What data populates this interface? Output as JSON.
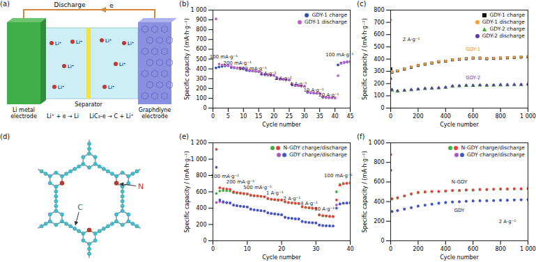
{
  "diagrams": [
    {
      "title": "(a)",
      "arrow_label": "Discharge",
      "electron_label": "e",
      "ion_label": "Li⁺",
      "left_electrode": [
        "Li metal",
        "electrode"
      ],
      "separator": "Separator",
      "right_electrode": [
        "Graphdiyne",
        "electrode"
      ],
      "left_reaction": "Li⁺ + e → Li",
      "right_reaction": "LiC₃-e → C + Li⁺"
    },
    {
      "title": "(d)",
      "nitrogen_label": "N",
      "carbon_label": "C"
    }
  ],
  "chart_data": [
    {
      "type": "scatter",
      "title": "(b)",
      "xlabel": "Cycle number",
      "ylabel": "Specific capacity / (mA·h·g⁻¹)",
      "xlim": [
        0,
        45
      ],
      "xticks": [
        0,
        5,
        10,
        15,
        20,
        25,
        30,
        35,
        40,
        45
      ],
      "ylim": [
        0,
        1000
      ],
      "yticks": [
        0,
        100,
        200,
        300,
        400,
        500,
        600,
        700,
        800,
        900,
        {
          "value": 1000,
          "label": "1 000"
        }
      ],
      "legend": "top-right",
      "grid": false,
      "x": [
        1,
        2,
        3,
        4,
        5,
        6,
        7,
        8,
        9,
        10,
        11,
        12,
        13,
        14,
        15,
        16,
        17,
        18,
        19,
        20,
        21,
        22,
        23,
        24,
        25,
        26,
        27,
        28,
        29,
        30,
        31,
        32,
        33,
        34,
        35,
        36,
        37,
        38,
        39,
        40,
        41,
        42,
        43,
        44,
        45
      ],
      "series": [
        {
          "name": "GDY-1 charge",
          "color": "#2f4fb5",
          "marker": "circle",
          "values": [
            410,
            420,
            425,
            430,
            432,
            415,
            410,
            408,
            405,
            403,
            385,
            380,
            378,
            375,
            372,
            345,
            340,
            338,
            335,
            333,
            300,
            295,
            292,
            290,
            288,
            235,
            230,
            228,
            225,
            222,
            160,
            155,
            153,
            150,
            148,
            110,
            108,
            106,
            105,
            104,
            440,
            460,
            465,
            470,
            472
          ]
        },
        {
          "name": "GDY-1 discharge",
          "color": "#c060c8",
          "marker": "circle",
          "values": [
            910,
            450,
            440,
            438,
            436,
            425,
            415,
            410,
            408,
            405,
            395,
            385,
            380,
            377,
            374,
            355,
            345,
            340,
            337,
            335,
            310,
            298,
            294,
            291,
            289,
            245,
            233,
            229,
            226,
            223,
            170,
            158,
            154,
            151,
            149,
            118,
            110,
            107,
            106,
            105,
            330,
            455,
            468,
            472,
            475
          ]
        }
      ],
      "annotations": [
        {
          "text": "100 mA·g⁻¹",
          "x": 3.5,
          "y": 520
        },
        {
          "text": "200 mA·g⁻¹",
          "x": 8,
          "y": 460
        },
        {
          "text": "500 mA·g⁻¹",
          "x": 13,
          "y": 405
        },
        {
          "text": "1 A·g⁻¹",
          "x": 18,
          "y": 350
        },
        {
          "text": "2 A·g⁻¹",
          "x": 23,
          "y": 300
        },
        {
          "text": "4 A·g⁻¹",
          "x": 28,
          "y": 245
        },
        {
          "text": "10 A·g⁻¹",
          "x": 33,
          "y": 185
        },
        {
          "text": "20 A·g⁻¹",
          "x": 38,
          "y": 130
        },
        {
          "text": "100 mA·g⁻¹",
          "x": 41.5,
          "y": 545
        }
      ]
    },
    {
      "type": "scatter",
      "title": "(c)",
      "xlabel": "Cycle number",
      "ylabel": "Specific capacity / (mA·h·g⁻¹)",
      "xlim": [
        0,
        1000
      ],
      "xticks": [
        0,
        200,
        400,
        600,
        800,
        {
          "value": 1000,
          "label": "1 000"
        }
      ],
      "ylim": [
        0,
        800
      ],
      "yticks": [
        0,
        100,
        200,
        300,
        400,
        500,
        600,
        700,
        800
      ],
      "legend": "top-right",
      "grid": false,
      "x": [
        1,
        10,
        50,
        100,
        150,
        200,
        250,
        300,
        350,
        400,
        450,
        500,
        550,
        600,
        650,
        700,
        750,
        800,
        850,
        900,
        950,
        1000
      ],
      "series": [
        {
          "name": "GDY-1 charge",
          "color": "#111111",
          "marker": "square",
          "values": [
            320,
            293,
            303,
            318,
            333,
            348,
            358,
            368,
            378,
            383,
            393,
            398,
            403,
            408,
            408,
            403,
            406,
            408,
            410,
            413,
            416,
            418
          ]
        },
        {
          "name": "GDY-1 discharge",
          "color": "#f39c3c",
          "marker": "circle",
          "values": [
            720,
            295,
            305,
            320,
            335,
            350,
            360,
            370,
            380,
            385,
            395,
            400,
            405,
            410,
            410,
            405,
            408,
            410,
            412,
            415,
            418,
            420
          ]
        },
        {
          "name": "GDY-2 charge",
          "color": "#3aaa35",
          "marker": "triangle",
          "values": [
            150,
            145,
            138,
            143,
            148,
            153,
            158,
            160,
            163,
            168,
            178,
            180,
            183,
            183,
            186,
            184,
            186,
            188,
            188,
            190,
            190,
            193
          ]
        },
        {
          "name": "GDY-2 discharge",
          "color": "#5b3fa8",
          "marker": "circle",
          "values": [
            240,
            150,
            140,
            145,
            150,
            155,
            160,
            162,
            165,
            170,
            180,
            182,
            185,
            185,
            188,
            186,
            188,
            190,
            190,
            192,
            192,
            195
          ]
        }
      ],
      "annotations": [
        {
          "text": "GDY-1",
          "x": 600,
          "y": 480,
          "color": "#f08a24"
        },
        {
          "text": "GDY-2",
          "x": 600,
          "y": 250,
          "color": "#5b3fa8"
        },
        {
          "text": "2 A·g⁻¹",
          "x": 150,
          "y": 560
        }
      ]
    },
    {
      "type": "scatter",
      "title": "(e)",
      "xlabel": "Cycle number",
      "ylabel": "Specific capacity / (mA·h·g⁻¹)",
      "xlim": [
        0,
        40
      ],
      "xticks": [
        0,
        10,
        20,
        30,
        40
      ],
      "ylim": [
        0,
        1200
      ],
      "yticks": [
        0,
        200,
        400,
        600,
        800,
        {
          "value": 1000,
          "label": "1 000"
        },
        {
          "value": 1200,
          "label": "1 200"
        }
      ],
      "legend": "top-right",
      "grid": false,
      "marker": "circle",
      "x": [
        1,
        2,
        3,
        4,
        5,
        6,
        7,
        8,
        9,
        10,
        11,
        12,
        13,
        14,
        15,
        16,
        17,
        18,
        19,
        20,
        21,
        22,
        23,
        24,
        25,
        26,
        27,
        28,
        29,
        30,
        31,
        32,
        33,
        34,
        35,
        36,
        37,
        38,
        39,
        40
      ],
      "series": [
        {
          "name": "N-GDY charge/discharge",
          "charge": {
            "color": "#3cb043",
            "values": [
              580,
              610,
              615,
              612,
              610,
              590,
              585,
              580,
              575,
              572,
              555,
              550,
              548,
              543,
              540,
              515,
              508,
              503,
              500,
              498,
              475,
              468,
              463,
              458,
              456,
              415,
              408,
              403,
              398,
              396,
              315,
              305,
              303,
              298,
              296,
              600,
              690,
              700,
              703,
              708
            ]
          },
          "discharge": {
            "color": "#e8403a",
            "values": [
              1120,
              650,
              640,
              635,
              630,
              600,
              590,
              585,
              580,
              575,
              560,
              555,
              550,
              545,
              540,
              520,
              510,
              505,
              500,
              500,
              480,
              470,
              465,
              460,
              458,
              420,
              410,
              405,
              400,
              398,
              320,
              310,
              305,
              300,
              298,
              500,
              680,
              700,
              705,
              710
            ]
          }
        },
        {
          "name": "GDY charge/discharge",
          "charge": {
            "color": "#b055c8",
            "values": [
              470,
              480,
              470,
              465,
              460,
              435,
              428,
              423,
              418,
              413,
              385,
              378,
              373,
              368,
              363,
              340,
              333,
              328,
              323,
              318,
              285,
              278,
              273,
              268,
              266,
              235,
              228,
              223,
              220,
              218,
              190,
              186,
              183,
              181,
              180,
              440,
              455,
              460,
              462,
              465
            ]
          },
          "discharge": {
            "color": "#3b5bc4",
            "values": [
              900,
              500,
              480,
              470,
              465,
              440,
              430,
              425,
              420,
              415,
              390,
              380,
              375,
              370,
              365,
              345,
              335,
              330,
              325,
              320,
              290,
              280,
              275,
              270,
              268,
              240,
              230,
              225,
              222,
              220,
              195,
              188,
              185,
              183,
              182,
              400,
              450,
              460,
              462,
              465
            ]
          }
        }
      ],
      "annotations": [
        {
          "text": "100 mA·g⁻¹",
          "x": 3.5,
          "y": 790
        },
        {
          "text": "200 mA·g⁻¹",
          "x": 8,
          "y": 720
        },
        {
          "text": "500 mA·g⁻¹",
          "x": 13,
          "y": 650
        },
        {
          "text": "1 A·g⁻¹",
          "x": 18,
          "y": 585
        },
        {
          "text": "2 A·g⁻¹",
          "x": 23,
          "y": 520
        },
        {
          "text": "4 A·g⁻¹",
          "x": 28,
          "y": 455
        },
        {
          "text": "10 A·g⁻¹",
          "x": 32.5,
          "y": 390
        },
        {
          "text": "100 mA·g⁻¹",
          "x": 36.5,
          "y": 800
        }
      ]
    },
    {
      "type": "scatter",
      "title": "(f)",
      "xlabel": "Cycle number",
      "ylabel": "Specific capacity / (mA·h·g⁻¹)",
      "xlim": [
        0,
        1000
      ],
      "xticks": [
        0,
        200,
        400,
        600,
        800,
        {
          "value": 1000,
          "label": "1 000"
        }
      ],
      "ylim": [
        0,
        1000
      ],
      "yticks": [
        0,
        200,
        400,
        600,
        800,
        {
          "value": 1000,
          "label": "1 000"
        }
      ],
      "legend": "top-right",
      "grid": false,
      "marker": "circle",
      "x": [
        1,
        10,
        50,
        100,
        150,
        200,
        250,
        300,
        350,
        400,
        450,
        500,
        550,
        600,
        650,
        700,
        750,
        800,
        850,
        900,
        950,
        1000
      ],
      "series": [
        {
          "name": "N-GDY charge/discharge",
          "charge": {
            "color": "#3cb043",
            "values": [
              430,
              425,
              436,
              456,
              476,
              491,
              496,
              501,
              501,
              506,
              511,
              511,
              516,
              516,
              521,
              521,
              524,
              526,
              526,
              528,
              528,
              531
            ]
          },
          "discharge": {
            "color": "#e8403a",
            "values": [
              880,
              430,
              440,
              460,
              480,
              495,
              500,
              505,
              505,
              510,
              515,
              515,
              520,
              520,
              525,
              525,
              528,
              530,
              530,
              532,
              532,
              535
            ]
          }
        },
        {
          "name": "GDY charge/discharge",
          "charge": {
            "color": "#b055c8",
            "values": [
              300,
              297,
              307,
              322,
              337,
              352,
              362,
              372,
              382,
              389,
              395,
              397,
              402,
              405,
              407,
              407,
              409,
              412,
              412,
              415,
              417,
              419
            ]
          },
          "discharge": {
            "color": "#3b5bc4",
            "values": [
              720,
              300,
              310,
              325,
              340,
              355,
              365,
              375,
              385,
              392,
              398,
              400,
              405,
              408,
              410,
              410,
              412,
              415,
              415,
              418,
              420,
              422
            ]
          }
        }
      ],
      "annotations": [
        {
          "text": "N-GDY",
          "x": 500,
          "y": 600
        },
        {
          "text": "GDY",
          "x": 500,
          "y": 310
        },
        {
          "text": "2 A·g⁻¹",
          "x": 850,
          "y": 200
        }
      ]
    }
  ]
}
